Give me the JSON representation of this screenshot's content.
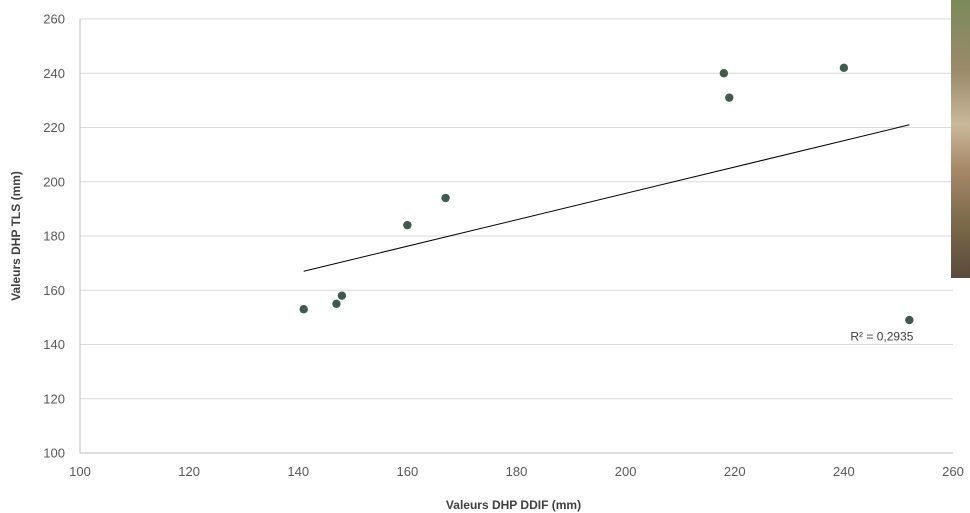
{
  "chart_data": {
    "type": "scatter",
    "title": "",
    "xlabel": "Valeurs DHP DDIF (mm)",
    "ylabel": "Valeurs DHP TLS (mm)",
    "xlim": [
      100,
      260
    ],
    "ylim": [
      100,
      260
    ],
    "xticks": [
      100,
      120,
      140,
      160,
      180,
      200,
      220,
      240,
      260
    ],
    "yticks": [
      100,
      120,
      140,
      160,
      180,
      200,
      220,
      240,
      260
    ],
    "grid": "horizontal",
    "series": [
      {
        "points": [
          {
            "x": 141,
            "y": 153
          },
          {
            "x": 147,
            "y": 155
          },
          {
            "x": 148,
            "y": 158
          },
          {
            "x": 160,
            "y": 184
          },
          {
            "x": 167,
            "y": 194
          },
          {
            "x": 218,
            "y": 240
          },
          {
            "x": 219,
            "y": 231
          },
          {
            "x": 240,
            "y": 242
          },
          {
            "x": 252,
            "y": 149
          }
        ],
        "color": "#3e5b4c"
      }
    ],
    "trendline": {
      "x_from": 141,
      "x_to": 252,
      "y_from": 167,
      "y_to": 221
    },
    "annotation": "R² = 0,2935",
    "annotation_at": {
      "x": 251,
      "y": 143
    }
  }
}
